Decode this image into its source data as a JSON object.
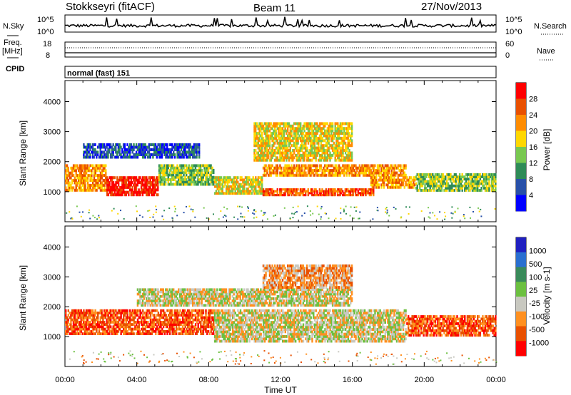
{
  "header": {
    "radar": "Stokkseyri (fitACF)",
    "beam": "Beam 11",
    "date": "27/Nov/2013"
  },
  "strip": {
    "nsky_label": "N.Sky",
    "nsky_ticks": [
      "10^5",
      "10^0"
    ],
    "nsearch_label": "N.Search",
    "nsearch_ticks": [
      "10^5",
      "10^0"
    ],
    "freq_label_1": "Freq.",
    "freq_label_2": "[MHz]",
    "freq_ticks": [
      "18",
      "8"
    ],
    "nave_label": "Nave",
    "nave_ticks": [
      "60",
      "0"
    ],
    "cpid_label": "CPID",
    "cpid_value": "normal (fast) 151"
  },
  "colors": {
    "power": [
      "#0000ff",
      "#2850a8",
      "#2e8b57",
      "#78c850",
      "#ffd700",
      "#ff8c00",
      "#e85000",
      "#ff0000"
    ],
    "velocity": [
      "#2020c0",
      "#2a6fd0",
      "#3a8a5a",
      "#6cc040",
      "#c8c8c0",
      "#ff9020",
      "#e85000",
      "#ff0000"
    ]
  },
  "chart_data": [
    {
      "type": "heatmap",
      "title": "Power",
      "xlabel": "Time UT",
      "ylabel": "Slant Range [km]",
      "x_ticks": [
        "00:00",
        "04:00",
        "08:00",
        "12:00",
        "16:00",
        "20:00",
        "00:00"
      ],
      "y_ticks": [
        "1000",
        "2000",
        "3000",
        "4000"
      ],
      "colorbar_label": "Power [dB]",
      "colorbar_ticks": [
        "4",
        "8",
        "12",
        "16",
        "20",
        "24",
        "28"
      ],
      "bands": [
        {
          "t0": 0.0,
          "t1": 2.3,
          "r0": 1000,
          "r1": 1900,
          "level": 5
        },
        {
          "t0": 2.3,
          "t1": 5.2,
          "r0": 850,
          "r1": 1500,
          "level": 7
        },
        {
          "t0": 5.2,
          "t1": 8.3,
          "r0": 1200,
          "r1": 1900,
          "level": 3
        },
        {
          "t0": 8.3,
          "t1": 11.0,
          "r0": 900,
          "r1": 1500,
          "level": 4
        },
        {
          "t0": 11.0,
          "t1": 17.2,
          "r0": 850,
          "r1": 1100,
          "level": 6
        },
        {
          "t0": 11.0,
          "t1": 19.0,
          "r0": 1500,
          "r1": 1900,
          "level": 5
        },
        {
          "t0": 17.0,
          "t1": 19.5,
          "r0": 1100,
          "r1": 1500,
          "level": 5
        },
        {
          "t0": 19.5,
          "t1": 24.0,
          "r0": 1000,
          "r1": 1600,
          "level": 3
        },
        {
          "t0": 1.0,
          "t1": 7.5,
          "r0": 2100,
          "r1": 2600,
          "level": 1
        },
        {
          "t0": 10.5,
          "t1": 16.0,
          "r0": 2000,
          "r1": 3300,
          "level": 4
        }
      ]
    },
    {
      "type": "heatmap",
      "title": "Velocity",
      "xlabel": "Time UT",
      "ylabel": "Slant Range [km]",
      "x_ticks": [
        "00:00",
        "04:00",
        "08:00",
        "12:00",
        "16:00",
        "20:00",
        "00:00"
      ],
      "y_ticks": [
        "1000",
        "2000",
        "3000",
        "4000"
      ],
      "colorbar_label": "Velocity [m s-1]",
      "colorbar_ticks": [
        "1000",
        "500",
        "100",
        "25",
        "-25",
        "-100",
        "-500",
        "-1000"
      ],
      "bands": [
        {
          "t0": 0.0,
          "t1": 8.3,
          "r0": 1050,
          "r1": 1900,
          "level": 6
        },
        {
          "t0": 8.3,
          "t1": 19.0,
          "r0": 800,
          "r1": 1900,
          "level": 4
        },
        {
          "t0": 19.0,
          "t1": 24.0,
          "r0": 1000,
          "r1": 1700,
          "level": 6
        },
        {
          "t0": 4.0,
          "t1": 16.0,
          "r0": 2000,
          "r1": 2600,
          "level": 4
        },
        {
          "t0": 11.0,
          "t1": 16.0,
          "r0": 2600,
          "r1": 3400,
          "level": 5
        }
      ]
    }
  ]
}
